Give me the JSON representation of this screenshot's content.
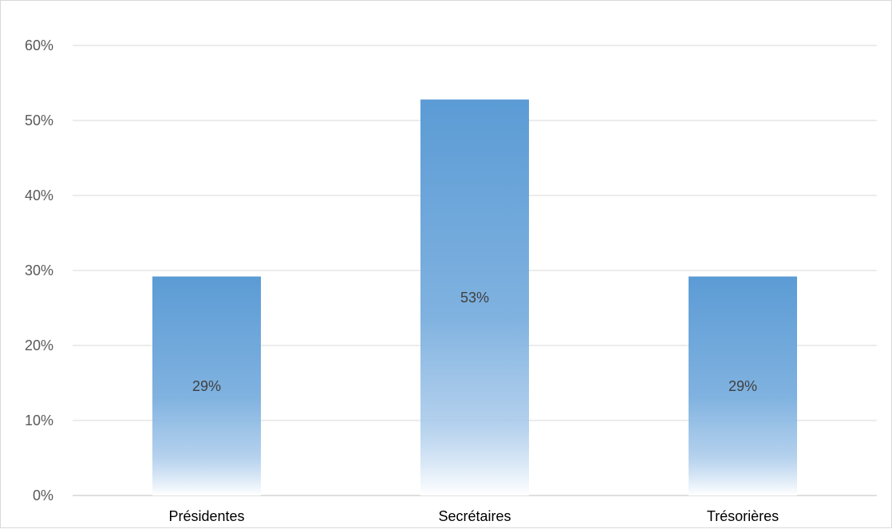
{
  "chart_data": {
    "type": "bar",
    "categories": [
      "Présidentes",
      "Secrétaires",
      "Trésorières"
    ],
    "values": [
      29.2,
      52.8,
      29.2
    ],
    "data_labels": [
      "29%",
      "53%",
      "29%"
    ],
    "ylim": [
      0,
      60
    ],
    "yticks": [
      0,
      10,
      20,
      30,
      40,
      50,
      60
    ],
    "ytick_labels": [
      "0%",
      "10%",
      "20%",
      "30%",
      "40%",
      "50%",
      "60%"
    ],
    "grid": true,
    "bar_color": "#5b9bd5",
    "title": "",
    "xlabel": "",
    "ylabel": ""
  }
}
